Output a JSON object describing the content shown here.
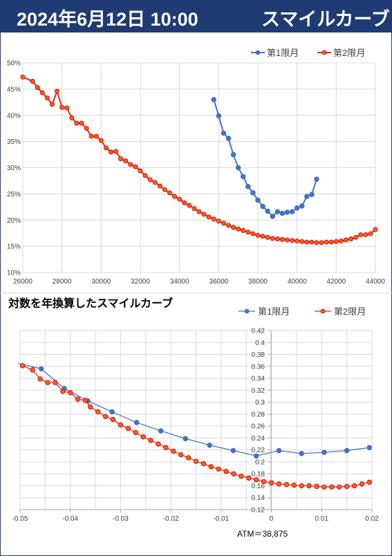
{
  "header": {
    "date": "2024年6月12日 10:00",
    "subtitle": "スマイルカーブ"
  },
  "colors": {
    "header_bg": "#1f3b73",
    "s1_chart1": "#4472c4",
    "s2_chart1": "#e8211c",
    "s1_chart2": "#4472c4",
    "s2_chart2": "#e8211c",
    "s2_fill": "#ff5a1f",
    "grid": "#d9d9d9"
  },
  "chart_data": [
    {
      "type": "line",
      "title": "",
      "xlabel": "",
      "ylabel": "",
      "xlim": [
        26000,
        44000
      ],
      "ylim": [
        0.1,
        0.5
      ],
      "x_ticks": [
        26000,
        28000,
        30000,
        32000,
        34000,
        36000,
        38000,
        40000,
        42000,
        44000
      ],
      "x_tick_labels": [
        "26000",
        "28000",
        "30000",
        "32000",
        "34000",
        "36000",
        "38000",
        "40000",
        "42000",
        "44000"
      ],
      "y_ticks": [
        0.1,
        0.15,
        0.2,
        0.25,
        0.3,
        0.35,
        0.4,
        0.45,
        0.5
      ],
      "y_tick_labels": [
        "10%",
        "15%",
        "20%",
        "25%",
        "30%",
        "35%",
        "40%",
        "45%",
        "50%"
      ],
      "grid": true,
      "legend_position": "top-right",
      "series": [
        {
          "name": "第1限月",
          "x": [
            35750,
            36000,
            36250,
            36500,
            36750,
            37000,
            37250,
            37500,
            37750,
            38000,
            38250,
            38500,
            38750,
            39000,
            39250,
            39500,
            39750,
            40000,
            40250,
            40500,
            40750,
            41000
          ],
          "y": [
            0.43,
            0.399,
            0.366,
            0.356,
            0.325,
            0.3,
            0.283,
            0.264,
            0.252,
            0.238,
            0.226,
            0.217,
            0.207,
            0.216,
            0.213,
            0.215,
            0.216,
            0.223,
            0.227,
            0.245,
            0.249,
            0.278
          ]
        },
        {
          "name": "第2限月",
          "x": [
            26000,
            26500,
            26750,
            27000,
            27250,
            27500,
            27750,
            28000,
            28250,
            28500,
            28750,
            29000,
            29250,
            29500,
            29750,
            30000,
            30250,
            30500,
            30750,
            31000,
            31250,
            31500,
            31750,
            32000,
            32250,
            32500,
            32750,
            33000,
            33250,
            33500,
            33750,
            34000,
            34250,
            34500,
            34750,
            35000,
            35250,
            35500,
            35750,
            36000,
            36250,
            36500,
            36750,
            37000,
            37250,
            37500,
            37750,
            38000,
            38250,
            38500,
            38750,
            39000,
            39250,
            39500,
            39750,
            40000,
            40250,
            40500,
            40750,
            41000,
            41250,
            41500,
            41750,
            42000,
            42250,
            42500,
            42750,
            43000,
            43250,
            43500,
            43750,
            44000
          ],
          "y": [
            0.473,
            0.465,
            0.453,
            0.443,
            0.433,
            0.421,
            0.446,
            0.415,
            0.414,
            0.395,
            0.385,
            0.385,
            0.375,
            0.36,
            0.36,
            0.352,
            0.338,
            0.33,
            0.331,
            0.317,
            0.313,
            0.306,
            0.302,
            0.294,
            0.285,
            0.277,
            0.272,
            0.265,
            0.258,
            0.252,
            0.245,
            0.24,
            0.233,
            0.228,
            0.222,
            0.216,
            0.211,
            0.206,
            0.202,
            0.198,
            0.194,
            0.19,
            0.186,
            0.183,
            0.18,
            0.177,
            0.174,
            0.171,
            0.169,
            0.167,
            0.165,
            0.164,
            0.163,
            0.162,
            0.161,
            0.16,
            0.159,
            0.158,
            0.158,
            0.157,
            0.157,
            0.158,
            0.158,
            0.159,
            0.16,
            0.162,
            0.164,
            0.167,
            0.172,
            0.172,
            0.174,
            0.182
          ]
        }
      ]
    },
    {
      "type": "line",
      "title": "対数を年換算したスマイルカーブ",
      "xlabel": "",
      "ylabel": "",
      "xlim": [
        -0.05,
        0.02
      ],
      "ylim": [
        0.12,
        0.42
      ],
      "x_ticks": [
        -0.05,
        -0.04,
        -0.03,
        -0.02,
        -0.01,
        0,
        0.01,
        0.02
      ],
      "x_tick_labels": [
        "-0.05",
        "-0.04",
        "-0.03",
        "-0.02",
        "-0.01",
        "0",
        "0.01",
        "0.02"
      ],
      "y_ticks": [
        0.12,
        0.14,
        0.16,
        0.18,
        0.2,
        0.22,
        0.24,
        0.26,
        0.28,
        0.3,
        0.32,
        0.34,
        0.36,
        0.38,
        0.4,
        0.42
      ],
      "y_tick_labels": [
        "0.12",
        "0.14",
        "0.16",
        "0.18",
        "0.2",
        "0.22",
        "0.24",
        "0.26",
        "0.28",
        "0.3",
        "0.32",
        "0.34",
        "0.36",
        "0.38",
        "0.4",
        "0.42"
      ],
      "grid": true,
      "legend_position": "top-right",
      "annotation": "ATM＝38,875",
      "series": [
        {
          "name": "第1限月",
          "x": [
            -0.051,
            -0.0458,
            -0.0412,
            -0.0365,
            -0.0317,
            -0.0268,
            -0.022,
            -0.0171,
            -0.0123,
            -0.0076,
            -0.003,
            0.0015,
            0.006,
            0.0105,
            0.015,
            0.0195
          ],
          "y": [
            0.365,
            0.356,
            0.323,
            0.302,
            0.284,
            0.266,
            0.252,
            0.239,
            0.228,
            0.219,
            0.21,
            0.219,
            0.214,
            0.216,
            0.219,
            0.224
          ]
        },
        {
          "name": "第2限月",
          "x": [
            -0.0495,
            -0.0475,
            -0.046,
            -0.0445,
            -0.043,
            -0.0415,
            -0.04,
            -0.0385,
            -0.037,
            -0.036,
            -0.0345,
            -0.033,
            -0.0315,
            -0.03,
            -0.0285,
            -0.027,
            -0.0255,
            -0.024,
            -0.0225,
            -0.021,
            -0.0195,
            -0.018,
            -0.0165,
            -0.015,
            -0.0135,
            -0.012,
            -0.0105,
            -0.009,
            -0.0075,
            -0.006,
            -0.0045,
            -0.003,
            -0.0015,
            0.0,
            0.0015,
            0.003,
            0.0045,
            0.006,
            0.0075,
            0.009,
            0.0105,
            0.012,
            0.0135,
            0.015,
            0.0165,
            0.018,
            0.0195
          ],
          "y": [
            0.361,
            0.354,
            0.339,
            0.333,
            0.333,
            0.318,
            0.316,
            0.305,
            0.303,
            0.292,
            0.284,
            0.276,
            0.271,
            0.262,
            0.256,
            0.249,
            0.242,
            0.236,
            0.23,
            0.224,
            0.218,
            0.212,
            0.207,
            0.201,
            0.197,
            0.192,
            0.188,
            0.184,
            0.18,
            0.176,
            0.173,
            0.17,
            0.167,
            0.165,
            0.163,
            0.162,
            0.161,
            0.16,
            0.16,
            0.159,
            0.158,
            0.158,
            0.158,
            0.159,
            0.16,
            0.163,
            0.166
          ]
        }
      ]
    }
  ]
}
